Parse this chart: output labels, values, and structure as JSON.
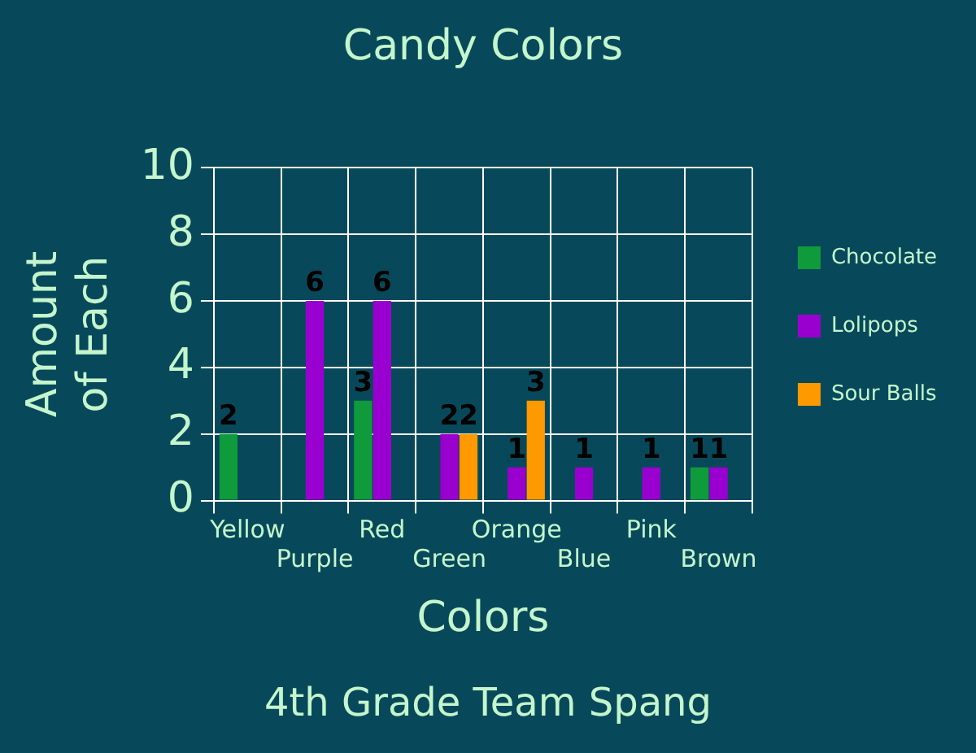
{
  "chart_data": {
    "type": "bar",
    "title": "Candy Colors",
    "xlabel": "Colors",
    "ylabel": "Amount of Each",
    "annotations": [
      "4th Grade Team Spang"
    ],
    "categories": [
      "Yellow",
      "Purple",
      "Red",
      "Green",
      "Orange",
      "Blue",
      "Pink",
      "Brown"
    ],
    "series": [
      {
        "name": "Chocolate",
        "color": "#0f9a3c",
        "values": [
          2,
          null,
          3,
          null,
          null,
          null,
          null,
          1
        ]
      },
      {
        "name": "Lolipops",
        "color": "#9900d0",
        "values": [
          null,
          6,
          6,
          2,
          1,
          1,
          1,
          1
        ]
      },
      {
        "name": "Sour Balls",
        "color": "#ff9900",
        "values": [
          null,
          null,
          null,
          2,
          3,
          null,
          null,
          null
        ]
      }
    ],
    "ylim": [
      0,
      10
    ],
    "yticks": [
      0,
      2,
      4,
      6,
      8,
      10
    ],
    "grid": true,
    "legend": "right",
    "data_labels": true
  }
}
